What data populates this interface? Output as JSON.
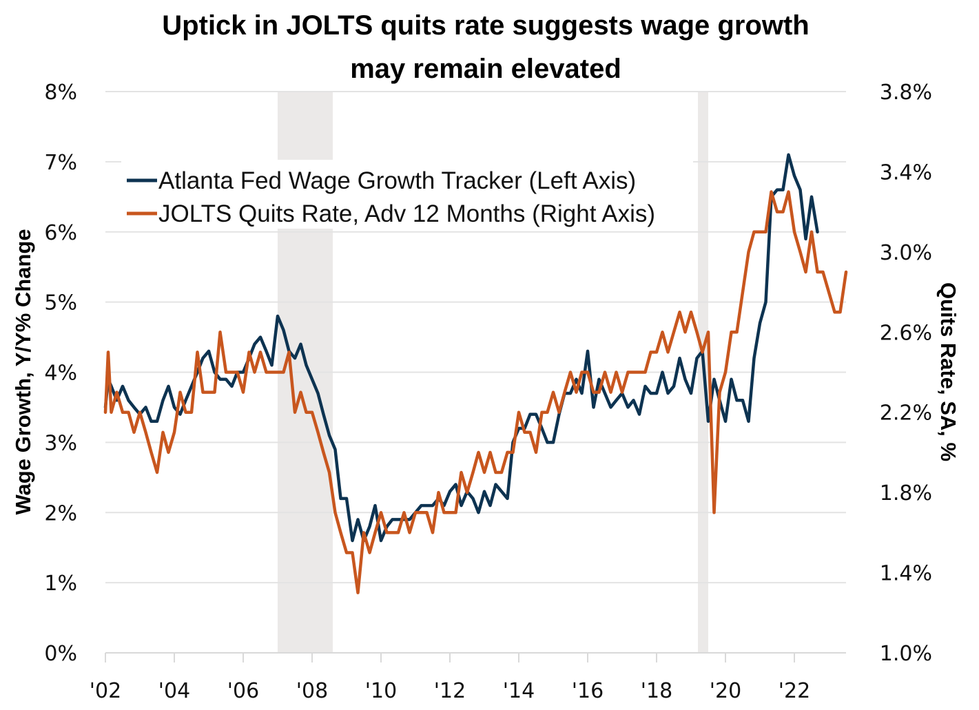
{
  "chart_data": {
    "type": "line",
    "title": "Uptick in JOLTS quits rate suggests wage growth may remain elevated",
    "title_lines": [
      "Uptick in JOLTS quits rate suggests wage growth",
      "may remain elevated"
    ],
    "xlabel": "",
    "ylabel_left": "Wage Growth, Y/Y% Change",
    "ylabel_right": "Quits Rate, SA, %",
    "x_ticks": [
      "'02",
      "'04",
      "'06",
      "'08",
      "'10",
      "'12",
      "'14",
      "'16",
      "'18",
      "'20",
      "'22"
    ],
    "x_tick_years": [
      2002,
      2004,
      2006,
      2008,
      2010,
      2012,
      2014,
      2016,
      2018,
      2020,
      2022
    ],
    "xlim": [
      2002,
      2023.5
    ],
    "ylim_left": [
      0,
      8
    ],
    "ylim_right": [
      1.0,
      3.8
    ],
    "y_ticks_left": [
      "0%",
      "1%",
      "2%",
      "3%",
      "4%",
      "5%",
      "6%",
      "7%",
      "8%"
    ],
    "y_ticks_right": [
      "1.0%",
      "1.4%",
      "1.8%",
      "2.2%",
      "2.6%",
      "3.0%",
      "3.4%",
      "3.8%"
    ],
    "grid": true,
    "legend_position": "top-left",
    "recessions": [
      [
        2007.0,
        2008.6
      ],
      [
        2019.2,
        2019.5
      ]
    ],
    "colors": {
      "wage": "#0d3351",
      "quits": "#c8561e",
      "recession": "#ebe9e8",
      "grid": "#e3e3e3"
    },
    "series": [
      {
        "name": "Atlanta Fed Wage Growth Tracker (Left Axis)",
        "axis": "left",
        "color": "#0d3351",
        "x": [
          2002.0,
          2002.08,
          2002.17,
          2002.33,
          2002.5,
          2002.67,
          2002.83,
          2003.0,
          2003.17,
          2003.33,
          2003.5,
          2003.67,
          2003.83,
          2004.0,
          2004.17,
          2004.33,
          2004.5,
          2004.67,
          2004.83,
          2005.0,
          2005.17,
          2005.33,
          2005.5,
          2005.67,
          2005.83,
          2006.0,
          2006.17,
          2006.33,
          2006.5,
          2006.67,
          2006.83,
          2007.0,
          2007.17,
          2007.33,
          2007.5,
          2007.67,
          2007.83,
          2008.0,
          2008.17,
          2008.33,
          2008.5,
          2008.67,
          2008.83,
          2009.0,
          2009.17,
          2009.33,
          2009.5,
          2009.67,
          2009.83,
          2010.0,
          2010.17,
          2010.33,
          2010.5,
          2010.67,
          2010.83,
          2011.0,
          2011.17,
          2011.33,
          2011.5,
          2011.67,
          2011.83,
          2012.0,
          2012.17,
          2012.33,
          2012.5,
          2012.67,
          2012.83,
          2013.0,
          2013.17,
          2013.33,
          2013.5,
          2013.67,
          2013.83,
          2014.0,
          2014.17,
          2014.33,
          2014.5,
          2014.67,
          2014.83,
          2015.0,
          2015.17,
          2015.33,
          2015.5,
          2015.67,
          2015.83,
          2016.0,
          2016.17,
          2016.33,
          2016.5,
          2016.67,
          2016.83,
          2017.0,
          2017.17,
          2017.33,
          2017.5,
          2017.67,
          2017.83,
          2018.0,
          2018.17,
          2018.33,
          2018.5,
          2018.67,
          2018.83,
          2019.0,
          2019.17,
          2019.33,
          2019.5,
          2019.67,
          2019.83,
          2020.0,
          2020.17,
          2020.33,
          2020.5,
          2020.67,
          2020.83,
          2021.0,
          2021.17,
          2021.33,
          2021.5,
          2021.67,
          2021.83,
          2022.0,
          2022.17,
          2022.33,
          2022.5,
          2022.67
        ],
        "values": [
          3.5,
          3.9,
          3.8,
          3.6,
          3.8,
          3.6,
          3.5,
          3.4,
          3.5,
          3.3,
          3.3,
          3.6,
          3.8,
          3.5,
          3.4,
          3.6,
          3.8,
          4.0,
          4.2,
          4.3,
          4.0,
          3.9,
          3.9,
          3.8,
          4.0,
          4.0,
          4.2,
          4.4,
          4.5,
          4.3,
          4.1,
          4.8,
          4.6,
          4.3,
          4.2,
          4.4,
          4.1,
          3.9,
          3.7,
          3.4,
          3.1,
          2.9,
          2.2,
          2.2,
          1.6,
          1.9,
          1.6,
          1.8,
          2.1,
          1.6,
          1.8,
          1.9,
          1.9,
          1.9,
          1.9,
          2.0,
          2.1,
          2.1,
          2.1,
          2.2,
          2.1,
          2.3,
          2.4,
          2.1,
          2.3,
          2.2,
          2.0,
          2.3,
          2.1,
          2.4,
          2.3,
          2.2,
          3.0,
          3.2,
          3.2,
          3.4,
          3.4,
          3.2,
          3.0,
          3.0,
          3.4,
          3.7,
          3.7,
          3.9,
          3.7,
          4.3,
          3.5,
          3.9,
          3.7,
          3.5,
          3.6,
          3.7,
          3.5,
          3.6,
          3.4,
          3.8,
          3.7,
          3.7,
          4.0,
          3.7,
          3.8,
          4.2,
          3.9,
          3.7,
          4.2,
          4.3,
          3.3,
          3.9,
          3.6,
          3.3,
          3.9,
          3.6,
          3.6,
          3.3,
          4.2,
          4.7,
          5.0,
          6.5,
          6.6,
          6.6,
          7.1,
          6.8,
          6.6,
          5.9,
          6.5,
          6.0
        ]
      },
      {
        "name": "JOLTS Quits Rate, Adv 12 Months (Right Axis)",
        "axis": "right",
        "color": "#c8561e",
        "x": [
          2002.0,
          2002.08,
          2002.17,
          2002.33,
          2002.5,
          2002.67,
          2002.83,
          2003.0,
          2003.17,
          2003.33,
          2003.5,
          2003.67,
          2003.83,
          2004.0,
          2004.17,
          2004.33,
          2004.5,
          2004.67,
          2004.83,
          2005.0,
          2005.17,
          2005.33,
          2005.5,
          2005.67,
          2005.83,
          2006.0,
          2006.17,
          2006.33,
          2006.5,
          2006.67,
          2006.83,
          2007.0,
          2007.17,
          2007.33,
          2007.5,
          2007.67,
          2007.83,
          2008.0,
          2008.17,
          2008.33,
          2008.5,
          2008.67,
          2008.83,
          2009.0,
          2009.17,
          2009.33,
          2009.5,
          2009.67,
          2009.83,
          2010.0,
          2010.17,
          2010.33,
          2010.5,
          2010.67,
          2010.83,
          2011.0,
          2011.17,
          2011.33,
          2011.5,
          2011.67,
          2011.83,
          2012.0,
          2012.17,
          2012.33,
          2012.5,
          2012.67,
          2012.83,
          2013.0,
          2013.17,
          2013.33,
          2013.5,
          2013.67,
          2013.83,
          2014.0,
          2014.17,
          2014.33,
          2014.5,
          2014.67,
          2014.83,
          2015.0,
          2015.17,
          2015.33,
          2015.5,
          2015.67,
          2015.83,
          2016.0,
          2016.17,
          2016.33,
          2016.5,
          2016.67,
          2016.83,
          2017.0,
          2017.17,
          2017.33,
          2017.5,
          2017.67,
          2017.83,
          2018.0,
          2018.17,
          2018.33,
          2018.5,
          2018.67,
          2018.83,
          2019.0,
          2019.17,
          2019.33,
          2019.5,
          2019.67,
          2019.83,
          2020.0,
          2020.17,
          2020.33,
          2020.5,
          2020.67,
          2020.83,
          2021.0,
          2021.17,
          2021.33,
          2021.5,
          2021.67,
          2021.83,
          2022.0,
          2022.17,
          2022.33,
          2022.5,
          2022.67,
          2022.83,
          2023.0,
          2023.17,
          2023.33,
          2023.5
        ],
        "values": [
          2.2,
          2.5,
          2.2,
          2.3,
          2.2,
          2.2,
          2.1,
          2.2,
          2.1,
          2.0,
          1.9,
          2.1,
          2.0,
          2.1,
          2.3,
          2.2,
          2.2,
          2.5,
          2.3,
          2.3,
          2.3,
          2.6,
          2.4,
          2.4,
          2.4,
          2.3,
          2.5,
          2.4,
          2.5,
          2.4,
          2.4,
          2.4,
          2.4,
          2.5,
          2.2,
          2.3,
          2.2,
          2.2,
          2.1,
          2.0,
          1.9,
          1.7,
          1.6,
          1.5,
          1.5,
          1.3,
          1.6,
          1.5,
          1.6,
          1.7,
          1.6,
          1.6,
          1.6,
          1.7,
          1.6,
          1.7,
          1.7,
          1.7,
          1.6,
          1.8,
          1.7,
          1.7,
          1.7,
          1.9,
          1.8,
          1.9,
          2.0,
          1.9,
          2.0,
          1.9,
          1.9,
          2.0,
          2.0,
          2.2,
          2.1,
          2.1,
          2.0,
          2.2,
          2.2,
          2.3,
          2.2,
          2.3,
          2.4,
          2.3,
          2.4,
          2.4,
          2.3,
          2.3,
          2.4,
          2.3,
          2.4,
          2.3,
          2.4,
          2.4,
          2.4,
          2.4,
          2.5,
          2.5,
          2.6,
          2.5,
          2.6,
          2.7,
          2.6,
          2.7,
          2.6,
          2.5,
          2.6,
          1.7,
          2.3,
          2.4,
          2.6,
          2.6,
          2.8,
          3.0,
          3.1,
          3.1,
          3.1,
          3.3,
          3.2,
          3.2,
          3.3,
          3.1,
          3.0,
          2.9,
          3.1,
          2.9,
          2.9,
          2.8,
          2.7,
          2.7,
          2.9
        ]
      }
    ]
  }
}
